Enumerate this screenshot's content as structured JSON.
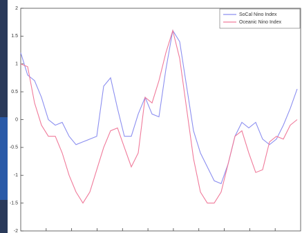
{
  "chart_data": {
    "type": "line",
    "series": [
      {
        "name": "SoCal Nino Index",
        "color": "#8c8ff0",
        "values": [
          1.2,
          0.8,
          0.7,
          0.4,
          0.0,
          -0.1,
          -0.05,
          -0.3,
          -0.45,
          -0.4,
          -0.35,
          -0.3,
          0.6,
          0.75,
          0.2,
          -0.3,
          -0.3,
          0.1,
          0.4,
          0.1,
          0.05,
          0.9,
          1.6,
          1.4,
          0.6,
          -0.2,
          -0.6,
          -0.85,
          -1.1,
          -1.15,
          -0.8,
          -0.3,
          -0.05,
          -0.15,
          -0.05,
          -0.35,
          -0.45,
          -0.35,
          -0.1,
          0.2,
          0.55
        ]
      },
      {
        "name": "Oceanic Nino Index",
        "color": "#f07a9a",
        "values": [
          1.0,
          0.95,
          0.3,
          -0.1,
          -0.3,
          -0.3,
          -0.6,
          -1.0,
          -1.3,
          -1.5,
          -1.3,
          -0.9,
          -0.5,
          -0.2,
          -0.15,
          -0.5,
          -0.85,
          -0.6,
          0.4,
          0.3,
          0.7,
          1.2,
          1.6,
          1.1,
          0.2,
          -0.7,
          -1.3,
          -1.5,
          -1.5,
          -1.3,
          -0.8,
          -0.3,
          -0.2,
          -0.6,
          -0.95,
          -0.9,
          -0.4,
          -0.3,
          -0.35,
          -0.1,
          0
        ]
      }
    ],
    "ylim": [
      -2,
      2
    ],
    "yticks": [
      -2,
      -1.5,
      -1,
      -0.5,
      0,
      0.5,
      1,
      1.5,
      2
    ],
    "legend": "upper right"
  }
}
